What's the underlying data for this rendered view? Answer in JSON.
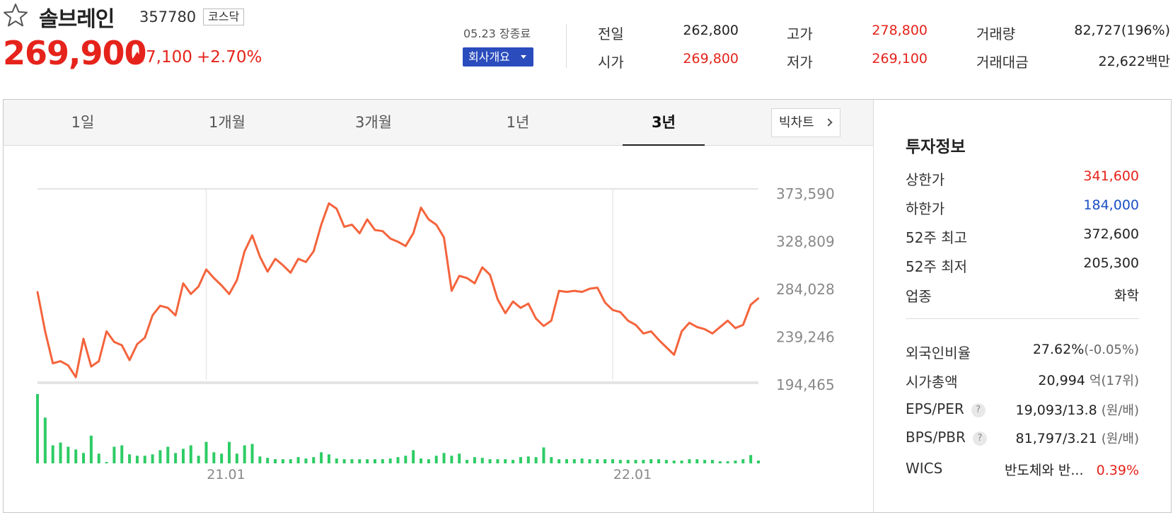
{
  "header": {
    "name": "솔브레인",
    "code": "357780",
    "market": "코스닥",
    "price": "269,900",
    "change": "7,100",
    "change_rate": "+2.70%",
    "close_info": "05.23 장종료",
    "company_button": "회사개요"
  },
  "quote": [
    {
      "label": "전일",
      "value": "262,800",
      "color": "#222222"
    },
    {
      "label": "고가",
      "value": "278,800",
      "color": "#e5231b"
    },
    {
      "label": "거래량",
      "value": "82,727(196%)",
      "color": "#222222"
    },
    {
      "label": "시가",
      "value": "269,800",
      "color": "#e5231b"
    },
    {
      "label": "저가",
      "value": "269,100",
      "color": "#e5231b"
    },
    {
      "label": "거래대금",
      "value": "22,622",
      "unit": "백만",
      "color": "#222222"
    }
  ],
  "tabs": [
    {
      "label": "1일"
    },
    {
      "label": "1개월"
    },
    {
      "label": "3개월"
    },
    {
      "label": "1년"
    },
    {
      "label": "3년",
      "active": true
    }
  ],
  "bigchart_label": "빅차트",
  "chart_data": {
    "type": "line",
    "line_color": "#f4643c",
    "volume_color": "#2ecc65",
    "y_ticks": [
      "373,590",
      "328,809",
      "284,028",
      "239,246",
      "194,465"
    ],
    "y_tick_values": [
      373590,
      328809,
      284028,
      239246,
      194465
    ],
    "x_ticks": [
      {
        "label": "21.01",
        "index": 22
      },
      {
        "label": "22.01",
        "index": 75
      }
    ],
    "price": [
      277000,
      240000,
      210000,
      212000,
      208000,
      197000,
      233000,
      207000,
      212000,
      240000,
      230000,
      227000,
      213000,
      228000,
      234000,
      255000,
      264000,
      262000,
      255000,
      285000,
      275000,
      282000,
      298000,
      290000,
      283000,
      275000,
      288000,
      315000,
      330000,
      310000,
      296000,
      308000,
      302000,
      295000,
      308000,
      305000,
      315000,
      340000,
      360000,
      355000,
      338000,
      340000,
      332000,
      345000,
      335000,
      334000,
      327000,
      324000,
      320000,
      332000,
      356000,
      345000,
      340000,
      328000,
      278000,
      292000,
      290000,
      285000,
      300000,
      293000,
      270000,
      257000,
      268000,
      262000,
      266000,
      252000,
      245000,
      250000,
      278000,
      277000,
      278000,
      277000,
      280000,
      281000,
      267000,
      260000,
      258000,
      250000,
      246000,
      238000,
      240000,
      232000,
      225000,
      218000,
      240000,
      248000,
      244000,
      242000,
      238000,
      244000,
      250000,
      243000,
      246000,
      265000,
      271000
    ],
    "volume": [
      100,
      66,
      26,
      30,
      24,
      20,
      15,
      40,
      14,
      2,
      24,
      26,
      13,
      11,
      11,
      13,
      19,
      24,
      15,
      21,
      26,
      11,
      31,
      16,
      14,
      31,
      14,
      26,
      28,
      10,
      8,
      6,
      6,
      6,
      9,
      7,
      9,
      16,
      13,
      7,
      6,
      6,
      6,
      6,
      6,
      6,
      7,
      9,
      11,
      19,
      7,
      6,
      11,
      15,
      11,
      14,
      5,
      9,
      8,
      6,
      6,
      6,
      5,
      9,
      10,
      9,
      23,
      9,
      6,
      6,
      6,
      7,
      6,
      6,
      6,
      6,
      5,
      5,
      5,
      5,
      6,
      6,
      5,
      4,
      4,
      6,
      6,
      5,
      5,
      3,
      3,
      4,
      6,
      12,
      4
    ]
  },
  "invest": {
    "title": "투자정보",
    "rows1": [
      {
        "label": "상한가",
        "value": "341,600",
        "color": "#e5231b"
      },
      {
        "label": "하한가",
        "value": "184,000",
        "color": "#1a4fc4"
      },
      {
        "label": "52주 최고",
        "value": "372,600",
        "color": "#222222"
      },
      {
        "label": "52주 최저",
        "value": "205,300",
        "color": "#222222"
      },
      {
        "label": "업종",
        "value": "화학",
        "color": "#222222"
      }
    ],
    "foreign_label": "외국인비율",
    "foreign_value": "27.62%",
    "foreign_sub": "(-0.05%)",
    "cap_label": "시가총액",
    "cap_value": "20,994",
    "cap_unit": "억",
    "cap_rank": "(17위)",
    "eps_label": "EPS/PER",
    "eps_value": "19,093/13.8",
    "eps_unit": "(원/배)",
    "bps_label": "BPS/PBR",
    "bps_value": "81,797/3.21",
    "bps_unit": "(원/배)",
    "help": "?",
    "wics_label": "WICS",
    "wics_value": "반도체와 반...",
    "wics_rate": "0.39%"
  }
}
